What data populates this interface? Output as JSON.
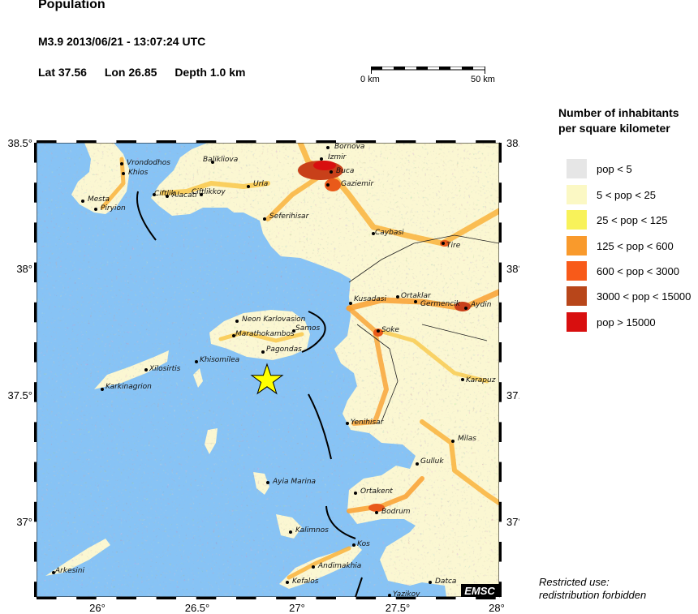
{
  "header": {
    "title": "Population",
    "event": "M3.9  2013/06/21 - 13:07:24 UTC",
    "lat": "Lat 37.56",
    "lon": "Lon 26.85",
    "depth": "Depth  1.0 km"
  },
  "scale_bar": {
    "start_label": "0 km",
    "end_label": "50 km"
  },
  "legend": {
    "title_line1": "Number of inhabitants",
    "title_line2": "per square kilometer",
    "items": [
      {
        "label": "pop < 5",
        "color": "#e6e6e6"
      },
      {
        "label": "5 < pop < 25",
        "color": "#fbf8c4"
      },
      {
        "label": "25 < pop < 125",
        "color": "#f8f25a"
      },
      {
        "label": "125 < pop < 600",
        "color": "#f99a2c"
      },
      {
        "label": "600 < pop < 3000",
        "color": "#f85a19"
      },
      {
        "label": "3000 < pop < 15000",
        "color": "#b8461a"
      },
      {
        "label": "pop > 15000",
        "color": "#d80f0f"
      }
    ]
  },
  "map": {
    "sea_color": "#87c3f5",
    "lon_ticks": [
      "26°",
      "26.5°",
      "27°",
      "27.5°",
      "28°"
    ],
    "lat_ticks": [
      "38.5°",
      "38°",
      "37.5°",
      "37°"
    ],
    "epicenter": {
      "lat": 37.56,
      "lon": 26.85,
      "icon": "star-icon",
      "color": "#ffff00"
    },
    "places": [
      "Bornova",
      "Izmir",
      "Buca",
      "Gaziemir",
      "Vrondodhos",
      "Khios",
      "Balikliova",
      "Urla",
      "Ciftlik",
      "Alacati",
      "Ciftlikkoy",
      "Seferihisar",
      "Mesta",
      "Piryion",
      "Caybasi",
      "Tire",
      "Ortaklar",
      "Germencik",
      "Kusadasi",
      "Aydin",
      "Neon Karlovasion",
      "Samos",
      "Marathokambos",
      "Pagondas",
      "Khisomilea",
      "Soke",
      "Xilosirtis",
      "Karkinagrion",
      "Karapuz",
      "Yenihisar",
      "Milas",
      "Gulluk",
      "Ayia Marina",
      "Ortakent",
      "Bodrum",
      "Kalimnos",
      "Kos",
      "Andimakhia",
      "Arkesini",
      "Kefalos",
      "Yazikoy",
      "Datca"
    ],
    "brand": "EMSC"
  },
  "notice": {
    "line1": "Restricted use:",
    "line2": "redistribution forbidden"
  }
}
